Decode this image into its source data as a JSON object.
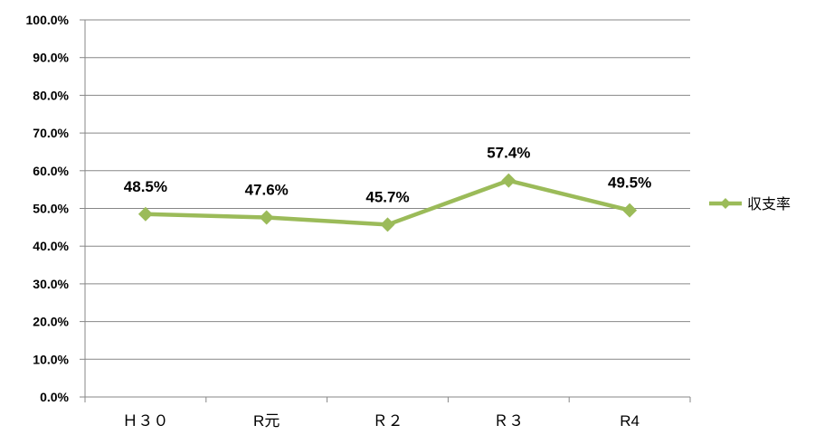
{
  "chart_data": {
    "type": "line",
    "categories": [
      "Ｈ３０",
      "R元",
      "Ｒ２",
      "Ｒ３",
      "R4"
    ],
    "series": [
      {
        "name": "収支率",
        "values": [
          48.5,
          47.6,
          45.7,
          57.4,
          49.5
        ],
        "color": "#9bbb59"
      }
    ],
    "data_labels": [
      "48.5%",
      "47.6%",
      "45.7%",
      "57.4%",
      "49.5%"
    ],
    "y_ticks": [
      "0.0%",
      "10.0%",
      "20.0%",
      "30.0%",
      "40.0%",
      "50.0%",
      "60.0%",
      "70.0%",
      "80.0%",
      "90.0%",
      "100.0%"
    ],
    "ylim": [
      0,
      100
    ],
    "grid": true,
    "legend": "right",
    "marker": "diamond"
  }
}
